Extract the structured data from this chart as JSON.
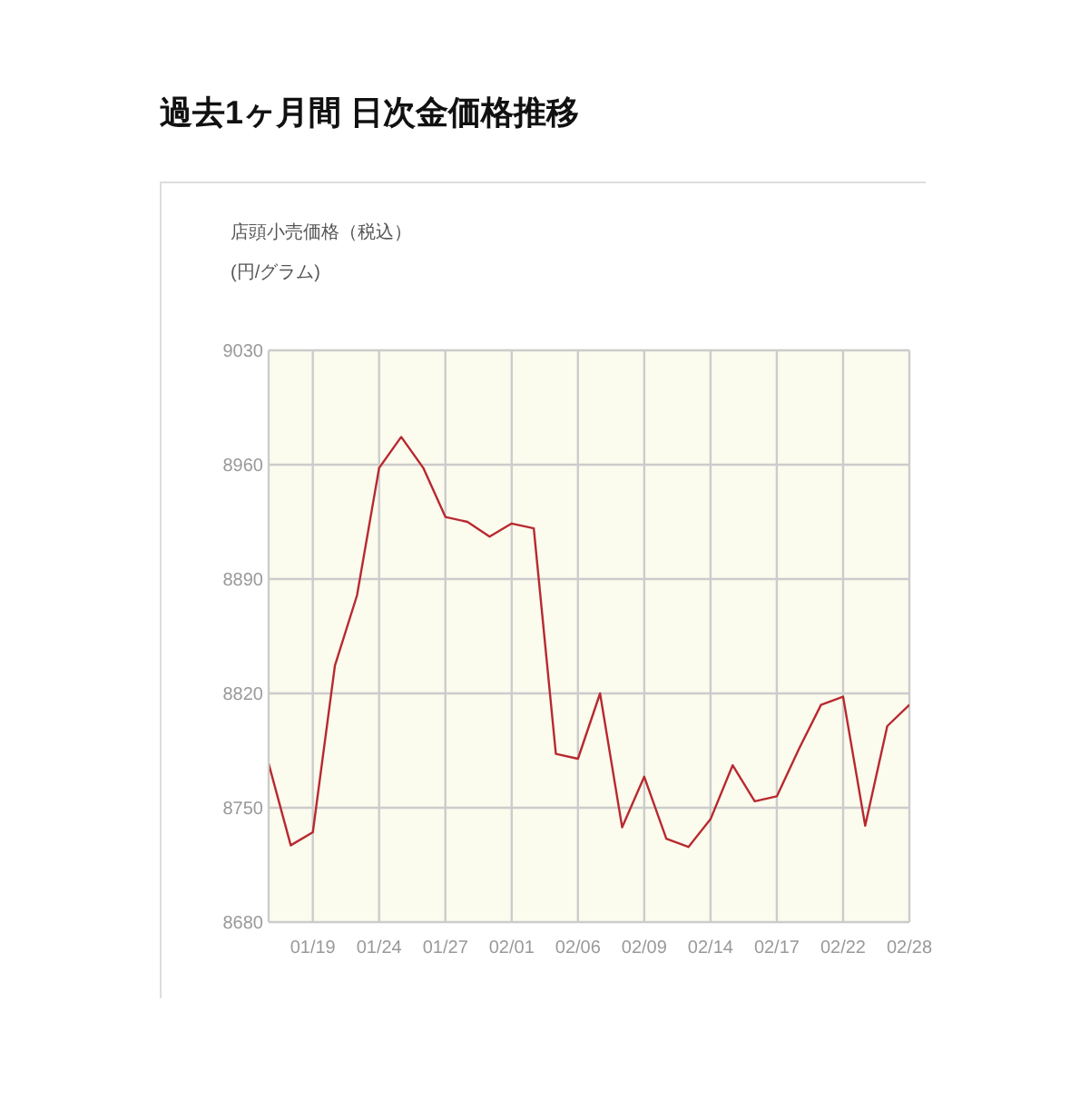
{
  "chart_data": {
    "type": "line",
    "title": "過去1ヶ月間 日次金価格推移",
    "subtitle": "店頭小売価格（税込）",
    "ylabel": "(円/グラム)",
    "categories": [
      null,
      null,
      "01/19",
      null,
      null,
      "01/24",
      null,
      null,
      "01/27",
      null,
      null,
      "02/01",
      null,
      null,
      "02/06",
      null,
      null,
      "02/09",
      null,
      null,
      "02/14",
      null,
      null,
      "02/17",
      null,
      null,
      "02/22",
      null,
      null,
      "02/28"
    ],
    "values": [
      8777,
      8727,
      8735,
      8837,
      8880,
      8958,
      8977,
      8958,
      8928,
      8925,
      8916,
      8924,
      8921,
      8783,
      8780,
      8820,
      8738,
      8769,
      8731,
      8726,
      8743,
      8776,
      8754,
      8757,
      8786,
      8813,
      8818,
      8739,
      8800,
      8813
    ],
    "color": "#b8292f",
    "ylim": [
      8680,
      9030
    ],
    "yticks": [
      8680,
      8750,
      8820,
      8890,
      8960,
      9030
    ],
    "grid": true,
    "marker": "none",
    "line_style": "solid"
  }
}
